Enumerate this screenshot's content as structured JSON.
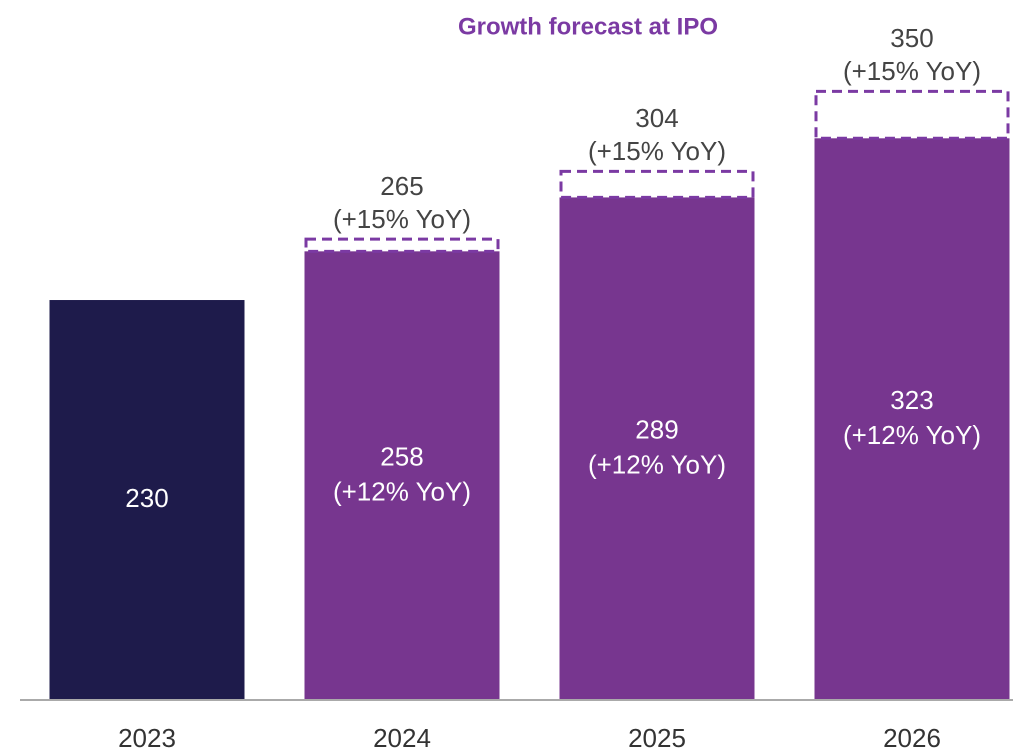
{
  "chart_data": {
    "type": "bar",
    "annotation": "Growth forecast at IPO",
    "categories": [
      "2023",
      "2024",
      "2025",
      "2026"
    ],
    "ylim": [
      0,
      400
    ],
    "series": [
      {
        "values": [
          230,
          258,
          289,
          323
        ],
        "colors": [
          "#1e1b4b",
          "#77368f",
          "#77368f",
          "#77368f"
        ],
        "growth_labels": [
          null,
          "(+12% YoY)",
          "(+12% YoY)",
          "(+12% YoY)"
        ]
      },
      {
        "values": [
          null,
          265,
          304,
          350
        ],
        "color": "#7b3aa3",
        "growth_labels": [
          null,
          "(+15% YoY)",
          "(+15% YoY)",
          "(+15% YoY)"
        ]
      }
    ]
  }
}
